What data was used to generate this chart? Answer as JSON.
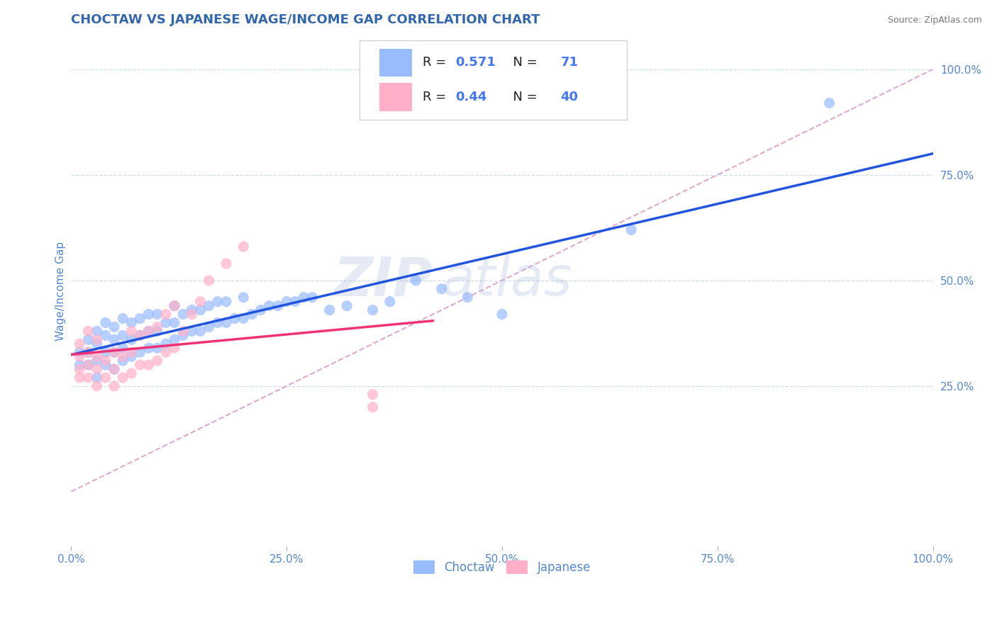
{
  "title": "CHOCTAW VS JAPANESE WAGE/INCOME GAP CORRELATION CHART",
  "source_text": "Source: ZipAtlas.com",
  "ylabel": "Wage/Income Gap",
  "watermark_top": "ZIP",
  "watermark_bottom": "atlas",
  "blue_R": 0.571,
  "blue_N": 71,
  "pink_R": 0.44,
  "pink_N": 40,
  "blue_scatter_color": "#99BBFF",
  "pink_scatter_color": "#FFB0C8",
  "trend_blue": "#2255DD",
  "trend_pink": "#EE3377",
  "diag_color": "#DDAACC",
  "title_color": "#3366AA",
  "axis_label_color": "#5588CC",
  "tick_label_color": "#5588CC",
  "legend_R_color": "#4477EE",
  "legend_N_color": "#4477EE",
  "xlim": [
    0.0,
    1.0
  ],
  "ylim": [
    -0.13,
    1.08
  ],
  "xticks": [
    0.0,
    0.25,
    0.5,
    0.75,
    1.0
  ],
  "xticklabels": [
    "0.0%",
    "25.0%",
    "50.0%",
    "75.0%",
    "100.0%"
  ],
  "ytick_positions": [
    0.25,
    0.5,
    0.75,
    1.0
  ],
  "ytick_labels": [
    "25.0%",
    "50.0%",
    "75.0%",
    "100.0%"
  ],
  "blue_x": [
    0.01,
    0.01,
    0.02,
    0.02,
    0.02,
    0.03,
    0.03,
    0.03,
    0.03,
    0.04,
    0.04,
    0.04,
    0.04,
    0.05,
    0.05,
    0.05,
    0.05,
    0.06,
    0.06,
    0.06,
    0.06,
    0.07,
    0.07,
    0.07,
    0.08,
    0.08,
    0.08,
    0.09,
    0.09,
    0.09,
    0.1,
    0.1,
    0.1,
    0.11,
    0.11,
    0.12,
    0.12,
    0.12,
    0.13,
    0.13,
    0.14,
    0.14,
    0.15,
    0.15,
    0.16,
    0.16,
    0.17,
    0.17,
    0.18,
    0.18,
    0.19,
    0.2,
    0.2,
    0.21,
    0.22,
    0.23,
    0.24,
    0.25,
    0.26,
    0.27,
    0.28,
    0.3,
    0.32,
    0.35,
    0.37,
    0.4,
    0.43,
    0.46,
    0.5,
    0.88,
    0.65
  ],
  "blue_y": [
    0.3,
    0.33,
    0.3,
    0.33,
    0.36,
    0.27,
    0.31,
    0.35,
    0.38,
    0.3,
    0.33,
    0.37,
    0.4,
    0.29,
    0.33,
    0.36,
    0.39,
    0.31,
    0.34,
    0.37,
    0.41,
    0.32,
    0.36,
    0.4,
    0.33,
    0.37,
    0.41,
    0.34,
    0.38,
    0.42,
    0.34,
    0.38,
    0.42,
    0.35,
    0.4,
    0.36,
    0.4,
    0.44,
    0.37,
    0.42,
    0.38,
    0.43,
    0.38,
    0.43,
    0.39,
    0.44,
    0.4,
    0.45,
    0.4,
    0.45,
    0.41,
    0.41,
    0.46,
    0.42,
    0.43,
    0.44,
    0.44,
    0.45,
    0.45,
    0.46,
    0.46,
    0.43,
    0.44,
    0.43,
    0.45,
    0.5,
    0.48,
    0.46,
    0.42,
    0.92,
    0.62
  ],
  "pink_x": [
    0.01,
    0.01,
    0.01,
    0.01,
    0.02,
    0.02,
    0.02,
    0.02,
    0.03,
    0.03,
    0.03,
    0.03,
    0.04,
    0.04,
    0.05,
    0.05,
    0.05,
    0.06,
    0.06,
    0.07,
    0.07,
    0.07,
    0.08,
    0.08,
    0.09,
    0.09,
    0.1,
    0.1,
    0.11,
    0.11,
    0.12,
    0.12,
    0.13,
    0.14,
    0.15,
    0.16,
    0.18,
    0.2,
    0.35,
    0.35
  ],
  "pink_y": [
    0.27,
    0.29,
    0.32,
    0.35,
    0.27,
    0.3,
    0.33,
    0.38,
    0.25,
    0.29,
    0.32,
    0.36,
    0.27,
    0.31,
    0.25,
    0.29,
    0.33,
    0.27,
    0.32,
    0.28,
    0.33,
    0.38,
    0.3,
    0.37,
    0.3,
    0.38,
    0.31,
    0.39,
    0.33,
    0.42,
    0.34,
    0.44,
    0.38,
    0.42,
    0.45,
    0.5,
    0.54,
    0.58,
    0.2,
    0.23
  ],
  "background_color": "#FFFFFF",
  "grid_color": "#CCDDEE",
  "title_fontsize": 13,
  "axis_label_fontsize": 11,
  "tick_label_fontsize": 11,
  "watermark_fontsize_zip": 55,
  "watermark_fontsize_atlas": 55,
  "watermark_color": "#AABBDD",
  "watermark_alpha": 0.3
}
